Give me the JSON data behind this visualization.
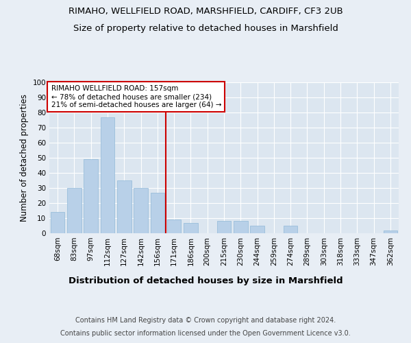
{
  "title": "RIMAHO, WELLFIELD ROAD, MARSHFIELD, CARDIFF, CF3 2UB",
  "subtitle": "Size of property relative to detached houses in Marshfield",
  "xlabel": "Distribution of detached houses by size in Marshfield",
  "ylabel": "Number of detached properties",
  "categories": [
    "68sqm",
    "83sqm",
    "97sqm",
    "112sqm",
    "127sqm",
    "142sqm",
    "156sqm",
    "171sqm",
    "186sqm",
    "200sqm",
    "215sqm",
    "230sqm",
    "244sqm",
    "259sqm",
    "274sqm",
    "289sqm",
    "303sqm",
    "318sqm",
    "333sqm",
    "347sqm",
    "362sqm"
  ],
  "values": [
    14,
    30,
    49,
    77,
    35,
    30,
    27,
    9,
    7,
    0,
    8,
    8,
    5,
    0,
    5,
    0,
    0,
    0,
    0,
    0,
    2
  ],
  "bar_color": "#b8d0e8",
  "bar_edgecolor": "#90b8d8",
  "ref_line_x": 6.5,
  "ref_line_label": "RIMAHO WELLFIELD ROAD: 157sqm",
  "ref_line_stat1": "← 78% of detached houses are smaller (234)",
  "ref_line_stat2": "21% of semi-detached houses are larger (64) →",
  "annotation_box_color": "#cc0000",
  "ylim": [
    0,
    100
  ],
  "yticks": [
    0,
    10,
    20,
    30,
    40,
    50,
    60,
    70,
    80,
    90,
    100
  ],
  "background_color": "#e8eef5",
  "plot_bg_color": "#dce6f0",
  "footer1": "Contains HM Land Registry data © Crown copyright and database right 2024.",
  "footer2": "Contains public sector information licensed under the Open Government Licence v3.0.",
  "title_fontsize": 9.5,
  "subtitle_fontsize": 9.5,
  "xlabel_fontsize": 9.5,
  "ylabel_fontsize": 8.5,
  "tick_fontsize": 7.5,
  "footer_fontsize": 7.0,
  "annot_fontsize": 7.5
}
